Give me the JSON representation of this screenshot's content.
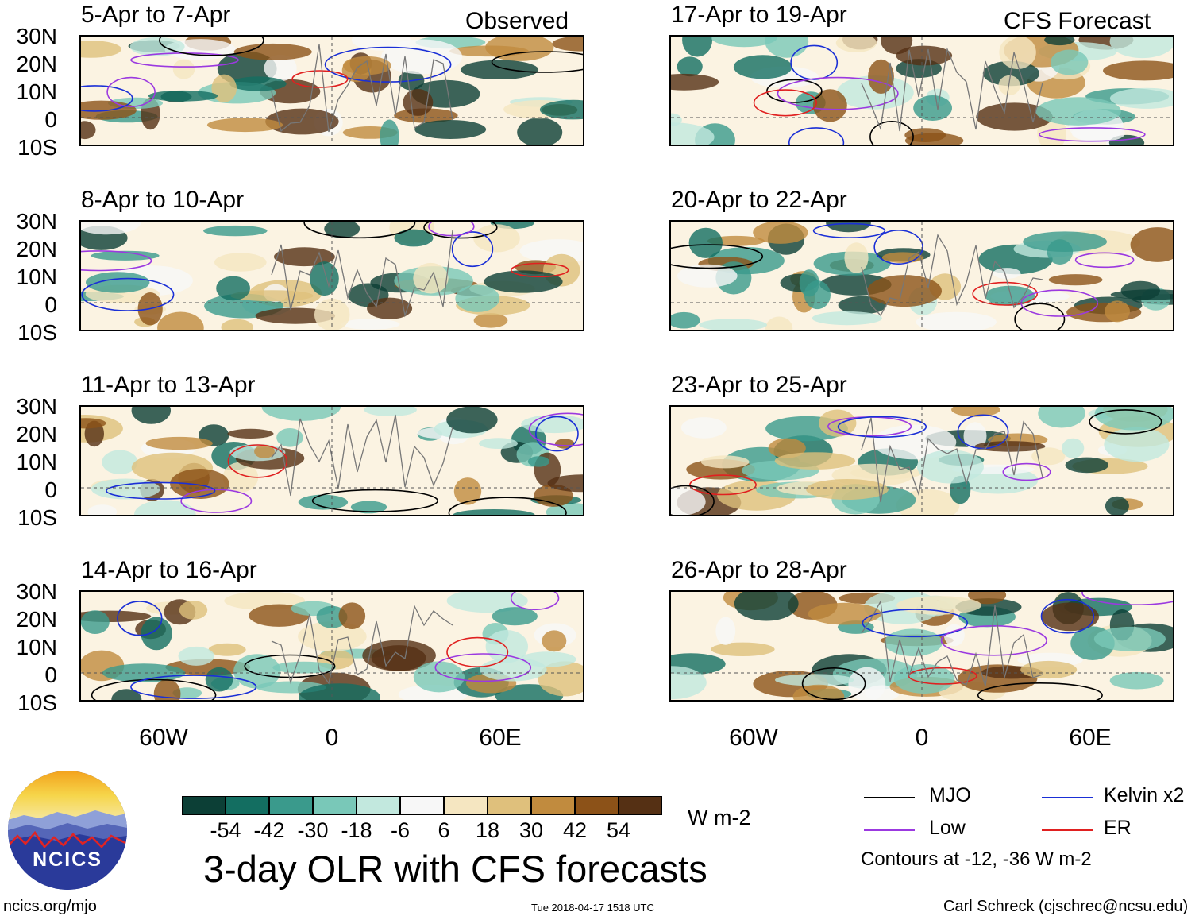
{
  "header": {
    "observed_label": "Observed",
    "forecast_label": "CFS Forecast"
  },
  "panels_left": [
    {
      "title": "5-Apr to 7-Apr"
    },
    {
      "title": "8-Apr to 10-Apr"
    },
    {
      "title": "11-Apr to 13-Apr"
    },
    {
      "title": "14-Apr to 16-Apr"
    }
  ],
  "panels_right": [
    {
      "title": "17-Apr to 19-Apr"
    },
    {
      "title": "20-Apr to 22-Apr"
    },
    {
      "title": "23-Apr to 25-Apr"
    },
    {
      "title": "26-Apr to 28-Apr"
    }
  ],
  "lat_labels": [
    "30N",
    "20N",
    "10N",
    "0",
    "10S"
  ],
  "lon_labels": [
    "60W",
    "0",
    "60E"
  ],
  "colorbar": {
    "colors": [
      "#0c3f36",
      "#136e61",
      "#3a9a8c",
      "#79c8b8",
      "#c2e8de",
      "#f7f7f7",
      "#f5e6c1",
      "#dfc07c",
      "#c18b3e",
      "#8c5218",
      "#553014"
    ],
    "labels": [
      "-54",
      "-42",
      "-30",
      "-18",
      "-6",
      "6",
      "18",
      "30",
      "42",
      "54"
    ],
    "units": "W m-2"
  },
  "main_title": "3-day OLR with CFS forecasts",
  "legend": {
    "items": [
      {
        "label": "MJO",
        "color": "#000000"
      },
      {
        "label": "Kelvin x2",
        "color": "#1a2fd6"
      },
      {
        "label": "Low",
        "color": "#9b39e0"
      },
      {
        "label": "ER",
        "color": "#e02020"
      }
    ],
    "note": "Contours at -12, -36 W m-2"
  },
  "logo_text": "NCICS",
  "footer": {
    "url": "ncics.org/mjo",
    "timestamp": "Tue 2018-04-17 1518 UTC",
    "credit": "Carl Schreck (cjschrec@ncsu.edu)"
  }
}
